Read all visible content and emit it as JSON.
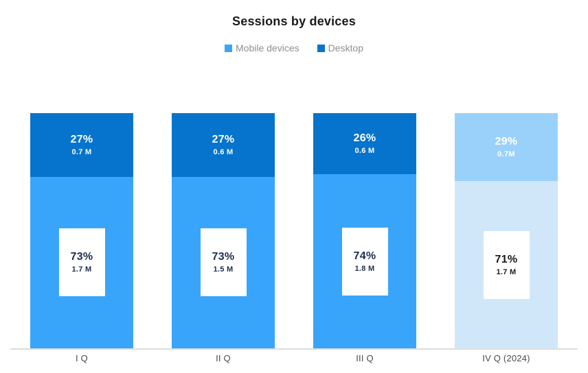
{
  "title": "Sessions by devices",
  "legend": [
    {
      "label": "Mobile devices",
      "color": "#38a5fb"
    },
    {
      "label": "Desktop",
      "color": "#0674cc"
    }
  ],
  "colors": {
    "desktop": "#0674cc",
    "mobile": "#38a5fb",
    "desktop_muted": "#99d1fb",
    "mobile_muted": "#d0e7fa",
    "axis_line": "#dcdcdc",
    "segment_label_text": "#ffffff",
    "box_text_navy": "#1c2e4e",
    "box_text_black": "#1a1a1a"
  },
  "chart_data": {
    "type": "bar",
    "stacked": true,
    "title": "Sessions by devices",
    "xlabel": "",
    "ylabel": "",
    "unit": "sessions (millions)",
    "grid": false,
    "legend_position": "top",
    "categories": [
      "I Q",
      "II Q",
      "III Q",
      "IV Q (2024)"
    ],
    "series": [
      {
        "name": "Mobile devices",
        "percents": [
          73,
          73,
          74,
          71
        ],
        "values_millions": [
          1.7,
          1.5,
          1.8,
          1.7
        ]
      },
      {
        "name": "Desktop",
        "percents": [
          27,
          27,
          26,
          29
        ],
        "values_millions": [
          0.7,
          0.6,
          0.6,
          0.7
        ]
      }
    ],
    "bars": [
      {
        "category": "I Q",
        "desktop": {
          "percent": 27,
          "percent_label": "27%",
          "value_label": "0.7 M",
          "color": "#0674cc",
          "text_color": "#ffffff"
        },
        "mobile": {
          "percent": 73,
          "percent_label": "73%",
          "value_label": "1.7 M",
          "color": "#38a5fb",
          "box_text_color": "#1c2e4e"
        }
      },
      {
        "category": "II Q",
        "desktop": {
          "percent": 27,
          "percent_label": "27%",
          "value_label": "0.6 M",
          "color": "#0674cc",
          "text_color": "#ffffff"
        },
        "mobile": {
          "percent": 73,
          "percent_label": "73%",
          "value_label": "1.5 M",
          "color": "#38a5fb",
          "box_text_color": "#1c2e4e"
        }
      },
      {
        "category": "III Q",
        "desktop": {
          "percent": 26,
          "percent_label": "26%",
          "value_label": "0.6 M",
          "color": "#0674cc",
          "text_color": "#ffffff"
        },
        "mobile": {
          "percent": 74,
          "percent_label": "74%",
          "value_label": "1.8 M",
          "color": "#38a5fb",
          "box_text_color": "#1c2e4e"
        }
      },
      {
        "category": "IV Q (2024)",
        "desktop": {
          "percent": 29,
          "percent_label": "29%",
          "value_label": "0.7M",
          "color": "#99d1fb",
          "text_color": "#ffffff"
        },
        "mobile": {
          "percent": 71,
          "percent_label": "71%",
          "value_label": "1.7 M",
          "color": "#d0e7fa",
          "box_text_color": "#1a1a1a"
        }
      }
    ]
  }
}
